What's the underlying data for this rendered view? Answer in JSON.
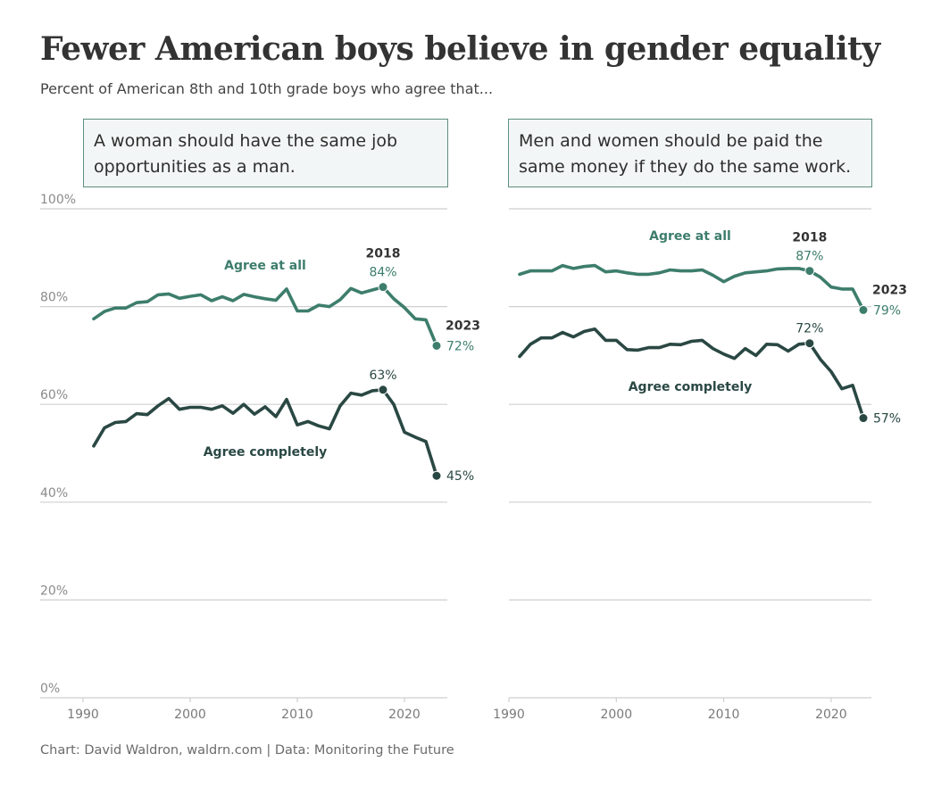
{
  "title": "Fewer American boys believe in gender equality",
  "subtitle": "Percent of American 8th and 10th grade boys who agree that...",
  "footer": "Chart: David Waldron, waldrn.com | Data: Monitoring the Future",
  "colors": {
    "agree_at_all": "#3d7d6c",
    "agree_completely": "#2a4843",
    "grid": "#cfcfcf",
    "box_border": "#5e8e80",
    "box_bg": "#f3f6f6"
  },
  "chart_data": [
    {
      "type": "line",
      "question": "A woman should have the same job opportunities as a man.",
      "xlabel": "",
      "ylabel": "",
      "xlim": [
        1990,
        2024
      ],
      "ylim": [
        0,
        100
      ],
      "x_ticks": [
        "1990",
        "2000",
        "2010",
        "2020"
      ],
      "y_ticks": [
        "0%",
        "20%",
        "40%",
        "60%",
        "80%",
        "100%"
      ],
      "grid": true,
      "x": [
        1991,
        1992,
        1993,
        1994,
        1995,
        1996,
        1997,
        1998,
        1999,
        2000,
        2001,
        2002,
        2003,
        2004,
        2005,
        2006,
        2007,
        2008,
        2009,
        2010,
        2011,
        2012,
        2013,
        2014,
        2015,
        2016,
        2017,
        2018,
        2019,
        2020,
        2021,
        2022,
        2023
      ],
      "series": [
        {
          "name": "Agree at all",
          "values": [
            77.5,
            79,
            79.7,
            79.7,
            80.8,
            81,
            82.4,
            82.6,
            81.7,
            82.1,
            82.4,
            81.2,
            82,
            81.2,
            82.5,
            82,
            81.6,
            81.3,
            83.6,
            79.1,
            79.1,
            80.3,
            80,
            81.4,
            83.7,
            82.8,
            83.4,
            84,
            81.6,
            79.8,
            77.5,
            77.3,
            72
          ],
          "annotations": [
            {
              "year": 2018,
              "year_label": "2018",
              "value_label": "84%"
            },
            {
              "year": 2023,
              "year_label": "2023",
              "value_label": "72%"
            }
          ]
        },
        {
          "name": "Agree completely",
          "values": [
            51.5,
            55.2,
            56.3,
            56.5,
            58.1,
            57.9,
            59.7,
            61.2,
            59,
            59.4,
            59.4,
            59,
            59.7,
            58.2,
            60,
            58,
            59.5,
            57.5,
            61,
            55.8,
            56.5,
            55.6,
            55,
            59.7,
            62.3,
            61.9,
            62.8,
            63,
            60,
            54.3,
            53.3,
            52.4,
            45.4
          ],
          "annotations": [
            {
              "year": 2018,
              "year_label": "",
              "value_label": "63%"
            },
            {
              "year": 2023,
              "year_label": "",
              "value_label": "45%"
            }
          ]
        }
      ]
    },
    {
      "type": "line",
      "question": "Men and women should be paid the same money if they do the same work.",
      "xlabel": "",
      "ylabel": "",
      "xlim": [
        1990,
        2024
      ],
      "ylim": [
        0,
        100
      ],
      "x_ticks": [
        "1990",
        "2000",
        "2010",
        "2020"
      ],
      "y_ticks": [
        "0%",
        "20%",
        "40%",
        "60%",
        "80%",
        "100%"
      ],
      "grid": true,
      "x": [
        1991,
        1992,
        1993,
        1994,
        1995,
        1996,
        1997,
        1998,
        1999,
        2000,
        2001,
        2002,
        2003,
        2004,
        2005,
        2006,
        2007,
        2008,
        2009,
        2010,
        2011,
        2012,
        2013,
        2014,
        2015,
        2016,
        2017,
        2018,
        2019,
        2020,
        2021,
        2022,
        2023
      ],
      "series": [
        {
          "name": "Agree at all",
          "values": [
            86.6,
            87.3,
            87.3,
            87.3,
            88.4,
            87.8,
            88.2,
            88.4,
            87.1,
            87.3,
            86.9,
            86.6,
            86.6,
            86.9,
            87.5,
            87.3,
            87.3,
            87.5,
            86.4,
            85.1,
            86.2,
            86.9,
            87.1,
            87.3,
            87.7,
            87.8,
            87.8,
            87.3,
            86,
            84,
            83.6,
            83.6,
            79.3
          ],
          "annotations": [
            {
              "year": 2018,
              "year_label": "2018",
              "value_label": "87%"
            },
            {
              "year": 2023,
              "year_label": "2023",
              "value_label": "79%"
            }
          ]
        },
        {
          "name": "Agree completely",
          "values": [
            69.8,
            72.3,
            73.6,
            73.6,
            74.7,
            73.8,
            74.9,
            75.4,
            73.1,
            73.1,
            71.2,
            71.1,
            71.6,
            71.6,
            72.3,
            72.2,
            72.9,
            73.1,
            71.4,
            70.3,
            69.4,
            71.4,
            70,
            72.3,
            72.2,
            70.9,
            72.3,
            72.5,
            69.2,
            66.7,
            63.2,
            63.9,
            57.2
          ],
          "annotations": [
            {
              "year": 2018,
              "year_label": "",
              "value_label": "72%"
            },
            {
              "year": 2023,
              "year_label": "",
              "value_label": "57%"
            }
          ]
        }
      ]
    }
  ]
}
